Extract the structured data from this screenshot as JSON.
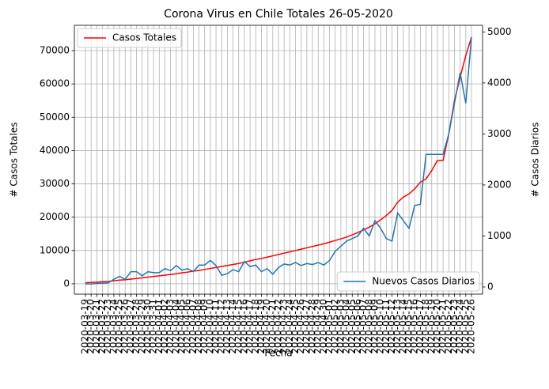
{
  "chart_data": {
    "type": "line",
    "title": "Corona Virus en Chile Totales 26-05-2020",
    "xlabel": "Fecha",
    "ylabel": "# Casos Totales",
    "y2label": "# Casos Diarios",
    "categories": [
      "2020-03-19",
      "2020-03-20",
      "2020-03-21",
      "2020-03-22",
      "2020-03-23",
      "2020-03-24",
      "2020-03-25",
      "2020-03-26",
      "2020-03-27",
      "2020-03-28",
      "2020-03-29",
      "2020-03-30",
      "2020-03-31",
      "2020-04-01",
      "2020-04-02",
      "2020-04-03",
      "2020-04-04",
      "2020-04-05",
      "2020-04-06",
      "2020-04-07",
      "2020-04-08",
      "2020-04-09",
      "2020-04-10",
      "2020-04-11",
      "2020-04-12",
      "2020-04-13",
      "2020-04-14",
      "2020-04-15",
      "2020-04-16",
      "2020-04-17",
      "2020-04-18",
      "2020-04-19",
      "2020-04-20",
      "2020-04-21",
      "2020-04-22",
      "2020-04-23",
      "2020-04-24",
      "2020-04-25",
      "2020-04-26",
      "2020-04-27",
      "2020-04-28",
      "2020-04-29",
      "2020-04-30",
      "2020-05-01",
      "2020-05-02",
      "2020-05-03",
      "2020-05-04",
      "2020-05-05",
      "2020-05-06",
      "2020-05-07",
      "2020-05-08",
      "2020-05-09",
      "2020-05-10",
      "2020-05-11",
      "2020-05-12",
      "2020-05-13",
      "2020-05-14",
      "2020-05-15",
      "2020-05-16",
      "2020-05-17",
      "2020-05-18",
      "2020-05-19",
      "2020-05-20",
      "2020-05-21",
      "2020-05-22",
      "2020-05-23",
      "2020-05-24",
      "2020-05-25",
      "2020-05-26"
    ],
    "series": [
      {
        "name": "Casos Totales",
        "color": "#ff0000",
        "legend": "upper left",
        "values": [
          300,
          400,
          500,
          600,
          700,
          900,
          1100,
          1200,
          1400,
          1600,
          1800,
          2000,
          2200,
          2400,
          2600,
          2800,
          3000,
          3300,
          3500,
          3800,
          4000,
          4300,
          4600,
          4900,
          5200,
          5500,
          5800,
          6100,
          6500,
          6900,
          7300,
          7600,
          8000,
          8400,
          8800,
          9200,
          9600,
          10000,
          10400,
          10800,
          11200,
          11600,
          12000,
          12500,
          13000,
          13500,
          14000,
          14700,
          15400,
          16200,
          17000,
          18000,
          19200,
          20500,
          22000,
          24500,
          26000,
          27000,
          28500,
          30500,
          31500,
          34000,
          37000,
          37000,
          45000,
          55000,
          62000,
          68500,
          74000
        ]
      },
      {
        "name": "Nuevos Casos Diarios",
        "color": "#1f77b4",
        "axis": "y2",
        "legend": "lower right",
        "values": [
          60,
          60,
          70,
          75,
          80,
          150,
          210,
          150,
          300,
          300,
          220,
          300,
          280,
          280,
          360,
          320,
          420,
          330,
          360,
          300,
          430,
          430,
          520,
          420,
          230,
          260,
          340,
          300,
          500,
          400,
          430,
          300,
          360,
          250,
          380,
          450,
          430,
          480,
          420,
          460,
          440,
          480,
          430,
          520,
          700,
          800,
          900,
          950,
          1000,
          1150,
          1000,
          1300,
          1150,
          950,
          900,
          1450,
          1300,
          1150,
          1600,
          1620,
          2600,
          2600,
          2600,
          2600,
          3000,
          3600,
          4200,
          3600,
          4900
        ]
      }
    ],
    "ylim": [
      -3100,
      77600
    ],
    "yticks": [
      0,
      10000,
      20000,
      30000,
      40000,
      50000,
      60000,
      70000
    ],
    "y2lim": [
      -140,
      5130
    ],
    "y2ticks": [
      0,
      1000,
      2000,
      3000,
      4000,
      5000
    ],
    "grid": true
  }
}
